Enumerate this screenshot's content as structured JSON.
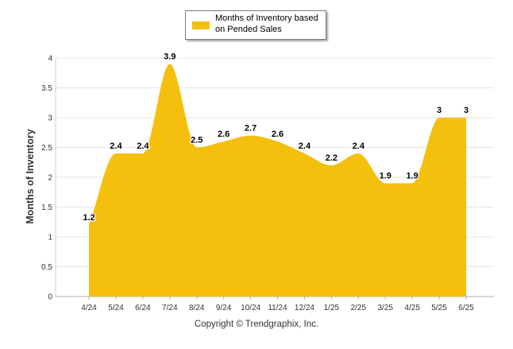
{
  "chart_data": {
    "type": "area",
    "legend": {
      "label": "Months of Inventory based on Pended Sales",
      "position": "top-center"
    },
    "ylabel": "Months of Inventory",
    "xlabel": "",
    "ylim": [
      0,
      4
    ],
    "yticks": [
      "0",
      "0.5",
      "1",
      "1.5",
      "2",
      "2.5",
      "3",
      "3.5",
      "4"
    ],
    "grid": true,
    "categories": [
      "4/24",
      "5/24",
      "6/24",
      "7/24",
      "8/24",
      "9/24",
      "10/24",
      "11/24",
      "12/24",
      "1/25",
      "2/25",
      "3/25",
      "4/25",
      "5/25",
      "6/25"
    ],
    "series": [
      {
        "name": "Months of Inventory based on Pended Sales",
        "color": "#f5bf0d",
        "values": [
          1.2,
          2.4,
          2.4,
          3.9,
          2.5,
          2.6,
          2.7,
          2.6,
          2.4,
          2.2,
          2.4,
          1.9,
          1.9,
          3,
          3
        ],
        "labels": [
          "1.2",
          "2.4",
          "2.4",
          "3.9",
          "2.5",
          "2.6",
          "2.7",
          "2.6",
          "2.4",
          "2.2",
          "2.4",
          "1.9",
          "1.9",
          "3",
          "3"
        ]
      }
    ]
  },
  "footer": {
    "copyright": "Copyright © Trendgraphix, Inc."
  }
}
